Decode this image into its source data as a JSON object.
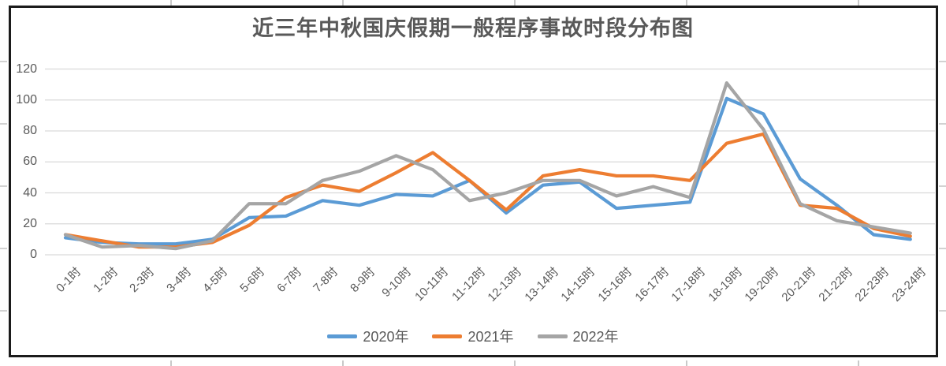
{
  "chart_data": {
    "type": "line",
    "title": "近三年中秋国庆假期一般程序事故时段分布图",
    "categories": [
      "0-1时",
      "1-2时",
      "2-3时",
      "3-4时",
      "4-5时",
      "5-6时",
      "6-7时",
      "7-8时",
      "8-9时",
      "9-10时",
      "10-11时",
      "11-12时",
      "12-13时",
      "13-14时",
      "14-15时",
      "15-16时",
      "16-17时",
      "17-18时",
      "18-19时",
      "19-20时",
      "20-21时",
      "21-22时",
      "22-23时",
      "23-24时"
    ],
    "series": [
      {
        "name": "2020年",
        "color": "#5B9BD5",
        "values": [
          11,
          8,
          7,
          7,
          10,
          24,
          25,
          35,
          32,
          39,
          38,
          48,
          27,
          45,
          47,
          30,
          32,
          34,
          101,
          91,
          49,
          32,
          13,
          10
        ]
      },
      {
        "name": "2021年",
        "color": "#ED7D31",
        "values": [
          13,
          9,
          5,
          5,
          8,
          19,
          37,
          45,
          41,
          53,
          66,
          48,
          29,
          51,
          55,
          51,
          51,
          48,
          72,
          78,
          32,
          30,
          17,
          12
        ]
      },
      {
        "name": "2022年",
        "color": "#A5A5A5",
        "values": [
          13,
          5,
          6,
          4,
          9,
          33,
          33,
          48,
          54,
          64,
          55,
          35,
          40,
          48,
          48,
          38,
          44,
          37,
          111,
          81,
          33,
          22,
          18,
          14
        ]
      }
    ],
    "ylim": [
      0,
      120
    ],
    "yticks": [
      0,
      20,
      40,
      60,
      80,
      100,
      120
    ],
    "xlabel": "",
    "ylabel": "",
    "grid": "horizontal",
    "legend_position": "bottom"
  },
  "style": {
    "grid_color": "#D9D9D9",
    "axis_text_color": "#595959",
    "title_color": "#595959",
    "frame_border_color": "#1b1b1b"
  }
}
